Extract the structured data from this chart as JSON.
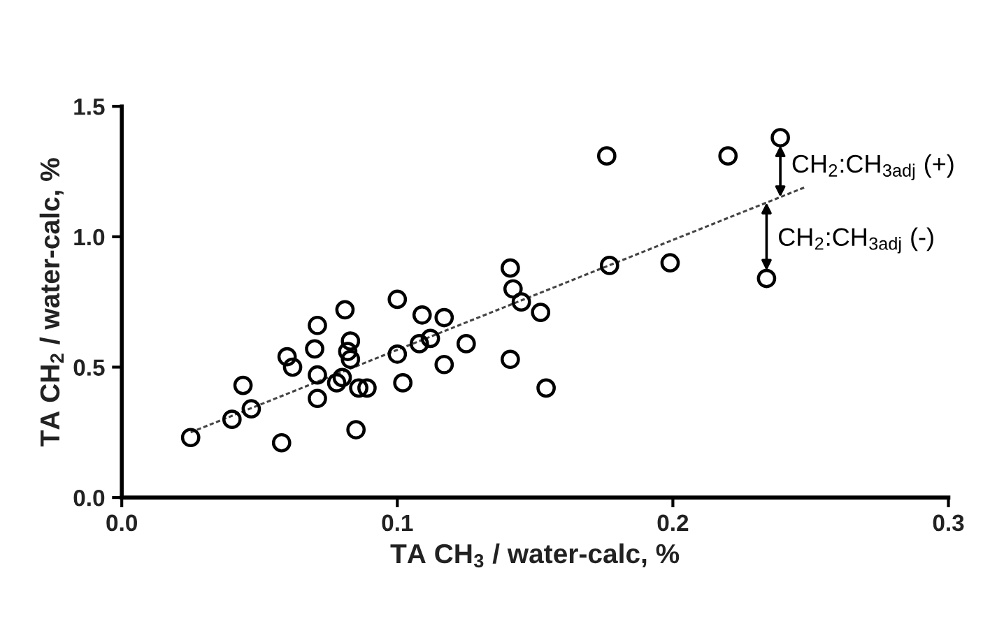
{
  "chart_data": {
    "type": "scatter",
    "xlabel": "TA CH$_{3}$ / water-calc, %",
    "ylabel": "TA CH$_{2}$ / water-calc, %",
    "xlim": [
      0,
      0.3
    ],
    "ylim": [
      0,
      1.5
    ],
    "xticks": [
      {
        "value": 0,
        "label": "0.0"
      },
      0.1,
      0.2,
      0.3
    ],
    "yticks": [
      {
        "value": 0,
        "label": "0.0"
      },
      0.5,
      {
        "value": 1,
        "label": "1.0"
      },
      1.5
    ],
    "grid": false,
    "legend": false,
    "marker": "circle",
    "series": [
      {
        "color": "#000000",
        "x": [
          0.025,
          0.04,
          0.044,
          0.047,
          0.058,
          0.06,
          0.062,
          0.07,
          0.071,
          0.071,
          0.071,
          0.078,
          0.08,
          0.081,
          0.082,
          0.083,
          0.083,
          0.085,
          0.086,
          0.089,
          0.1,
          0.1,
          0.102,
          0.108,
          0.109,
          0.112,
          0.117,
          0.117,
          0.125,
          0.141,
          0.141,
          0.142,
          0.145,
          0.152,
          0.154,
          0.176,
          0.177,
          0.199,
          0.22,
          0.234,
          0.239
        ],
        "values": [
          0.23,
          0.3,
          0.43,
          0.34,
          0.21,
          0.54,
          0.5,
          0.57,
          0.66,
          0.47,
          0.38,
          0.44,
          0.46,
          0.72,
          0.56,
          0.6,
          0.53,
          0.26,
          0.42,
          0.42,
          0.55,
          0.76,
          0.44,
          0.59,
          0.7,
          0.61,
          0.51,
          0.69,
          0.59,
          0.88,
          0.53,
          0.8,
          0.75,
          0.71,
          0.42,
          1.31,
          0.89,
          0.9,
          1.31,
          0.84,
          1.38
        ]
      },
      {
        "type": "line",
        "color": "#444444",
        "line_style": "dotted",
        "marker": "none",
        "x": [
          0.025,
          0.248
        ],
        "values": [
          0.25,
          1.19
        ]
      }
    ],
    "annotations": [
      {
        "text": "CH$_{2}$:CH$_{3adj}$ (+)",
        "x": 0.239,
        "y": 1.38
      },
      {
        "text": "CH$_{2}$:CH$_{3adj}$ (-)",
        "x": 0.234,
        "y": 0.84
      }
    ]
  }
}
